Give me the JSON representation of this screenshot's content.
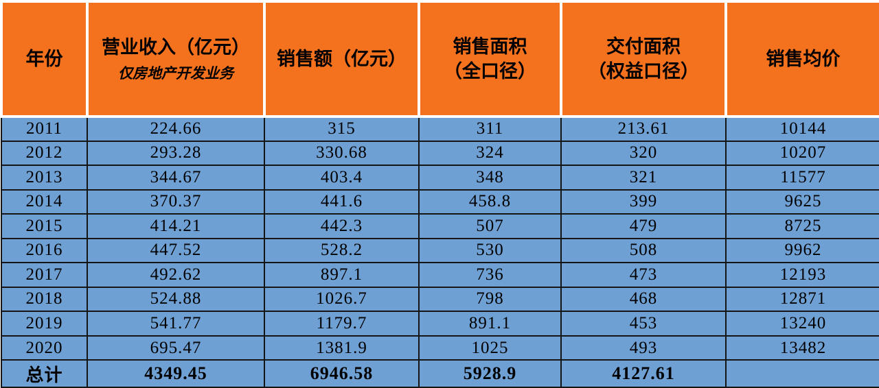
{
  "colors": {
    "header_bg": "#F4711D",
    "row_bg": "#6FA0D4",
    "border": "#151515",
    "gap": "#FFFFFF",
    "text": "#000000"
  },
  "chart_data": {
    "type": "table",
    "columns": [
      {
        "label": "年份",
        "sublabel": ""
      },
      {
        "label": "营业收入（亿元）",
        "sublabel": "仅房地产开发业务"
      },
      {
        "label": "销售额（亿元）",
        "sublabel": ""
      },
      {
        "label": "销售面积\n（全口径）",
        "sublabel": ""
      },
      {
        "label": "交付面积\n（权益口径）",
        "sublabel": ""
      },
      {
        "label": "销售均价",
        "sublabel": ""
      }
    ],
    "rows": [
      [
        "2011",
        "224.66",
        "315",
        "311",
        "213.61",
        "10144"
      ],
      [
        "2012",
        "293.28",
        "330.68",
        "324",
        "320",
        "10207"
      ],
      [
        "2013",
        "344.67",
        "403.4",
        "348",
        "321",
        "11577"
      ],
      [
        "2014",
        "370.37",
        "441.6",
        "458.8",
        "399",
        "9625"
      ],
      [
        "2015",
        "414.21",
        "442.3",
        "507",
        "479",
        "8725"
      ],
      [
        "2016",
        "447.52",
        "528.2",
        "530",
        "508",
        "9962"
      ],
      [
        "2017",
        "492.62",
        "897.1",
        "736",
        "473",
        "12193"
      ],
      [
        "2018",
        "524.88",
        "1026.7",
        "798",
        "468",
        "12871"
      ],
      [
        "2019",
        "541.77",
        "1179.7",
        "891.1",
        "453",
        "13240"
      ],
      [
        "2020",
        "695.47",
        "1381.9",
        "1025",
        "493",
        "13482"
      ]
    ],
    "total_row": [
      "总计",
      "4349.45",
      "6946.58",
      "5928.9",
      "4127.61",
      ""
    ]
  }
}
